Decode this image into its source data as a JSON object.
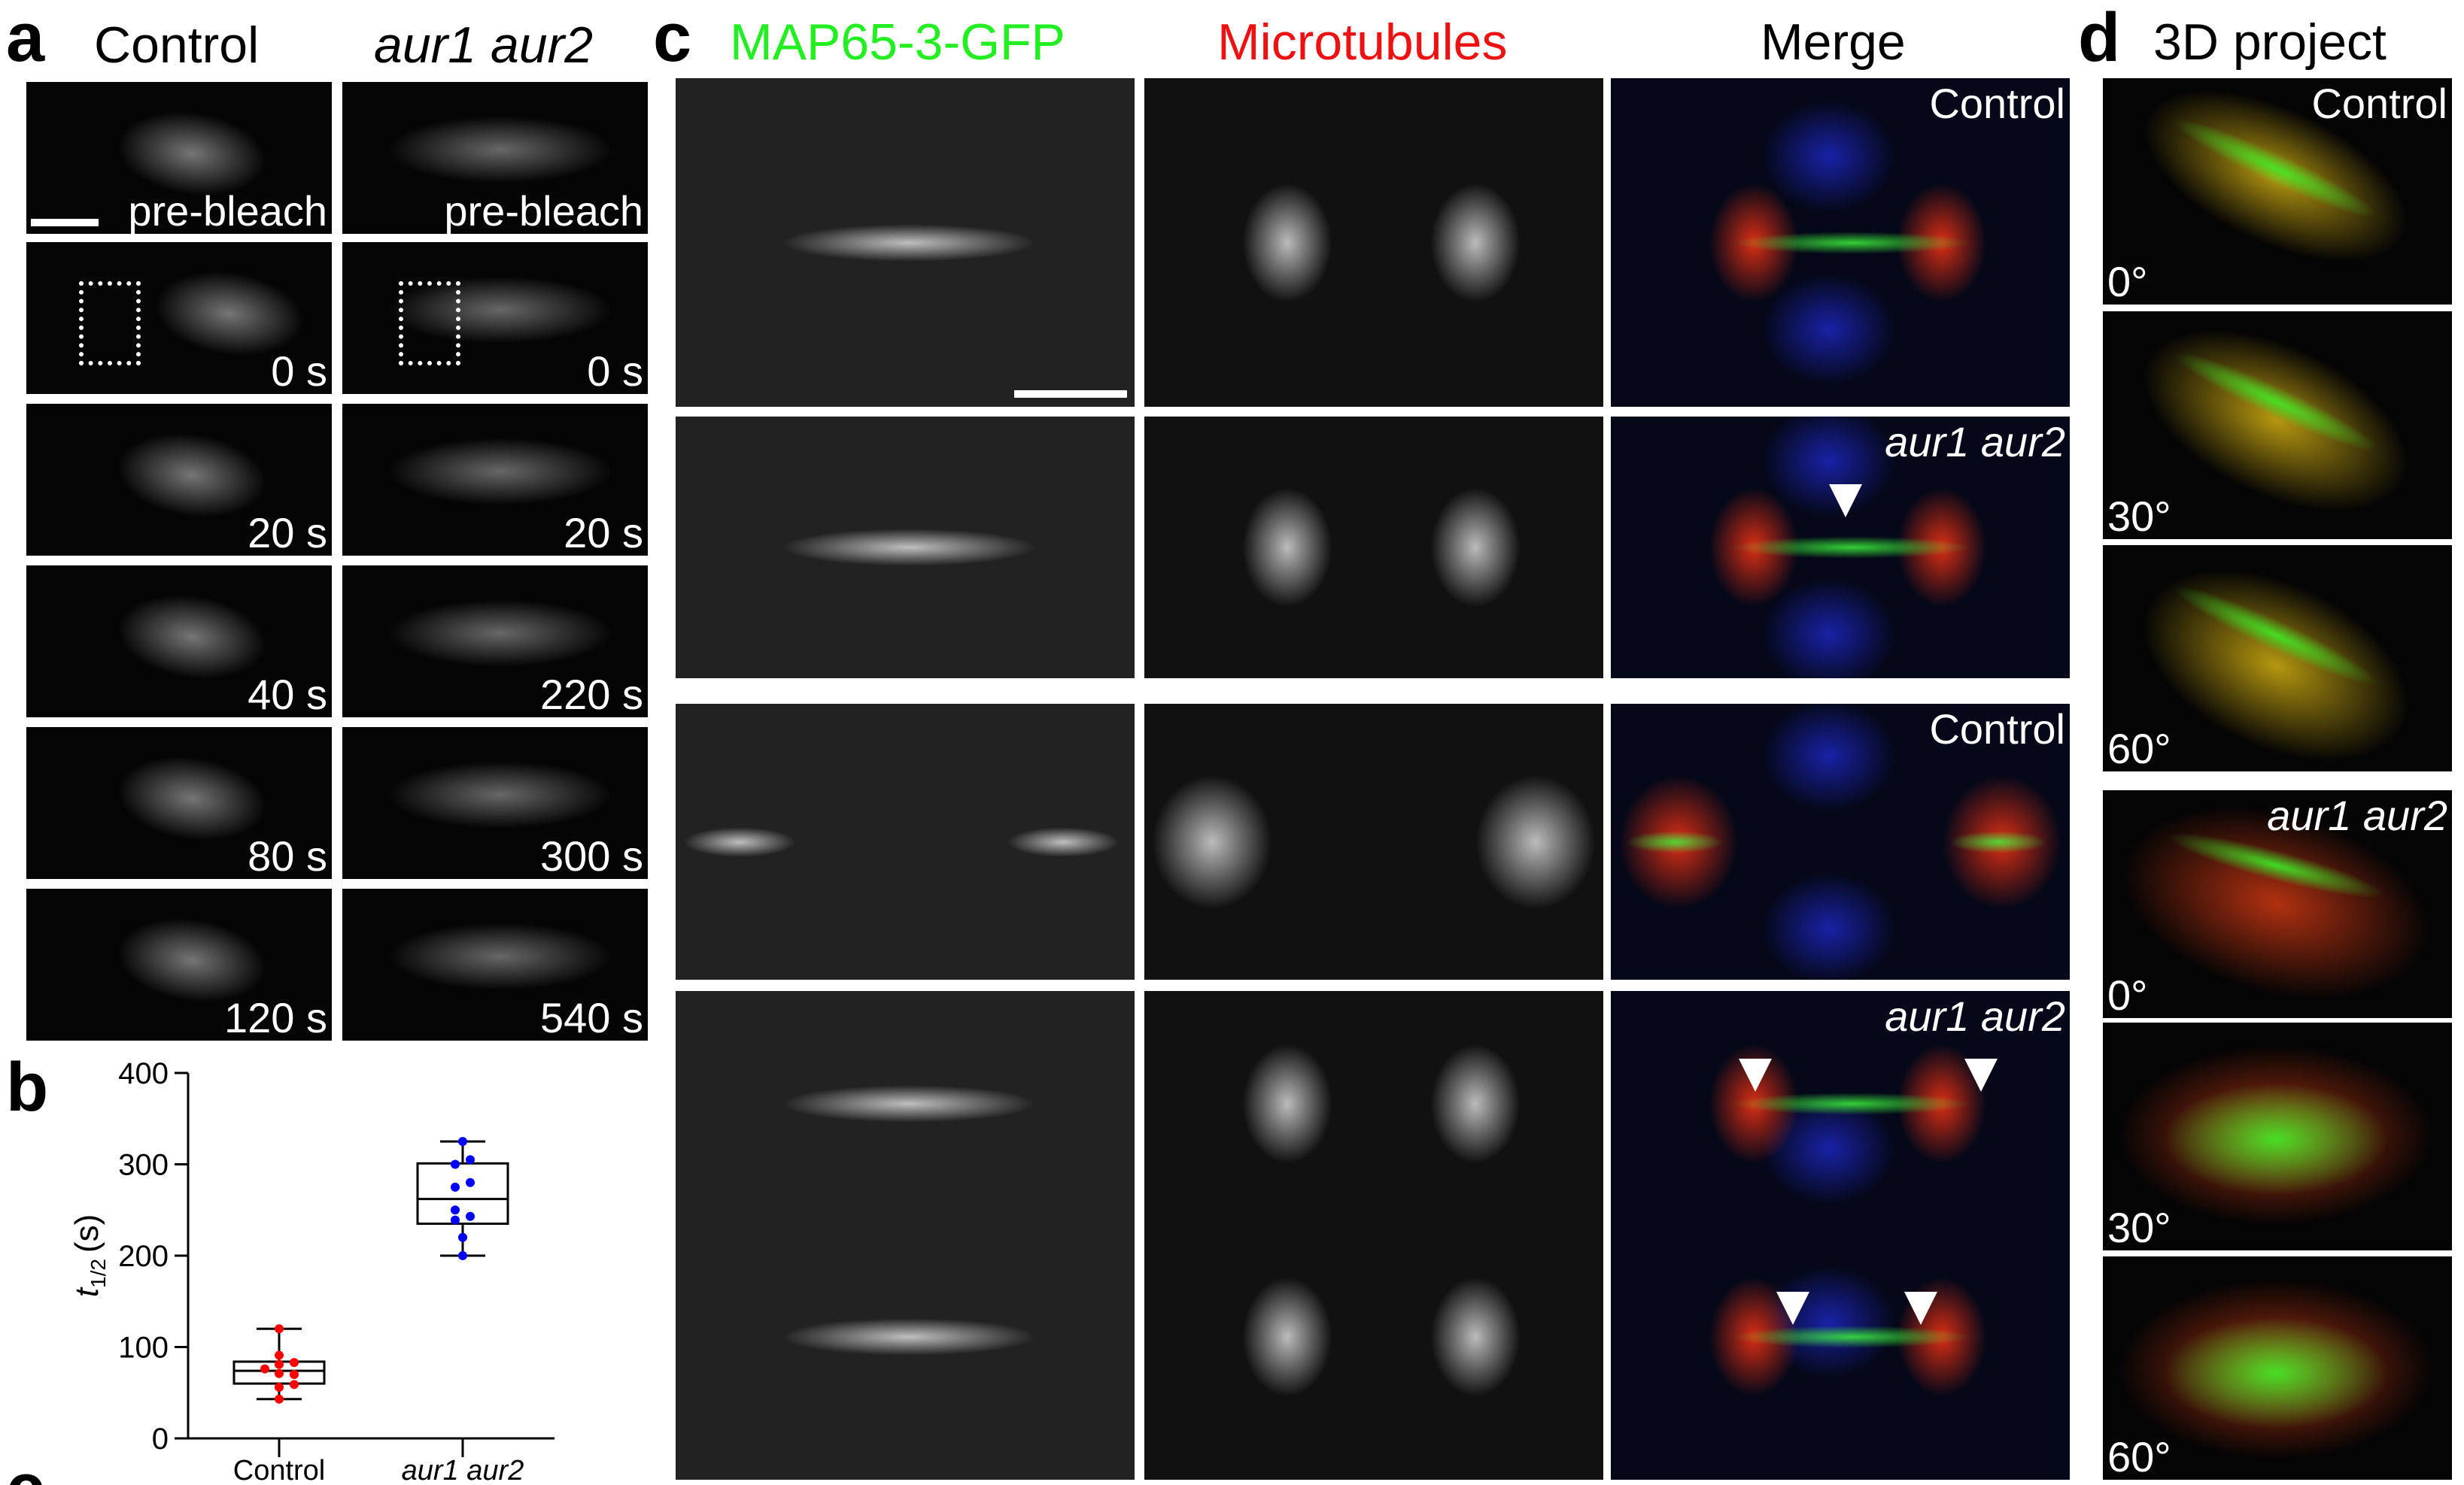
{
  "panel_labels": {
    "a": "a",
    "b": "b",
    "c": "c",
    "d": "d"
  },
  "panel_a": {
    "headers": [
      "Control",
      "aur1 aur2"
    ],
    "control_times": [
      "pre-bleach",
      "0 s",
      "20 s",
      "40 s",
      "80 s",
      "120 s"
    ],
    "mutant_times": [
      "pre-bleach",
      "0 s",
      "20 s",
      "220 s",
      "300 s",
      "540 s"
    ]
  },
  "panel_c": {
    "headers": [
      "MAP65-3-GFP",
      "Microtubules",
      "Merge"
    ],
    "header_colors": [
      "#22ee22",
      "#ee1111",
      "#000000"
    ],
    "row_labels": [
      "Control",
      "aur1 aur2",
      "Control",
      "aur1 aur2"
    ]
  },
  "panel_d": {
    "title": "3D project",
    "group_labels": [
      "Control",
      "aur1 aur2"
    ],
    "angles": [
      "0°",
      "30°",
      "60°",
      "0°",
      "30°",
      "60°"
    ]
  },
  "chart_data": {
    "type": "box",
    "ylabel_main": "t",
    "ylabel_sub": "1/2",
    "ylabel_unit": "(s)",
    "ylim": [
      0,
      400
    ],
    "yticks": [
      "0",
      "100",
      "200",
      "300",
      "400"
    ],
    "categories": [
      "Control",
      "aur1 aur2"
    ],
    "colors": [
      "#ff0000",
      "#0000ff"
    ],
    "boxes": [
      {
        "min": 43,
        "q1": 60,
        "median": 74,
        "q3": 84,
        "max": 120,
        "points": [
          120,
          91,
          81,
          83,
          76,
          70,
          71,
          56,
          59,
          43
        ]
      },
      {
        "min": 200,
        "q1": 235,
        "median": 262,
        "q3": 301,
        "max": 325,
        "points": [
          325,
          305,
          300,
          280,
          275,
          250,
          243,
          239,
          220,
          200
        ]
      }
    ]
  }
}
